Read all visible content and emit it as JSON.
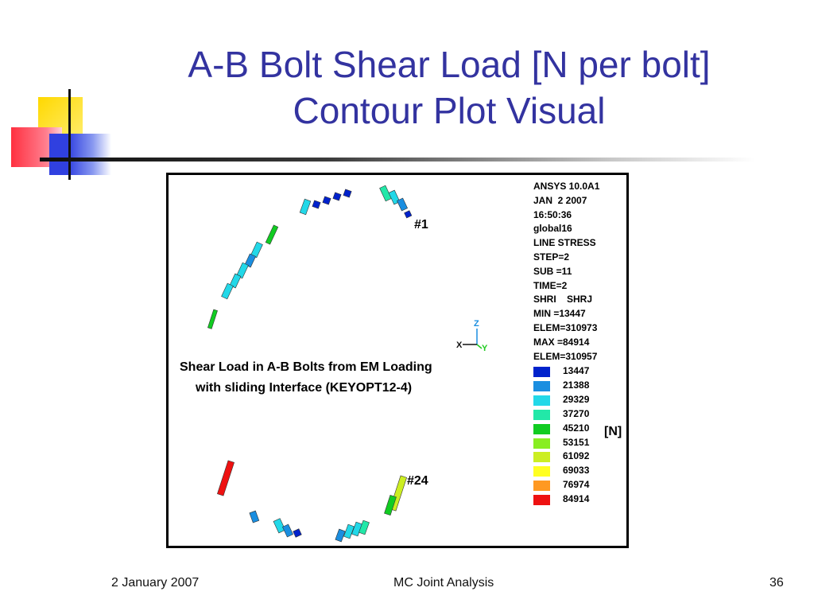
{
  "slide": {
    "title_line1": "A-B Bolt Shear Load [N per bolt]",
    "title_line2": "Contour Plot Visual"
  },
  "plot": {
    "header_lines": [
      "ANSYS 10.0A1",
      "JAN  2 2007",
      "16:50:36",
      "global16",
      "LINE STRESS",
      "STEP=2",
      "SUB =11",
      "TIME=2",
      "SHRI    SHRJ",
      "MIN =13447",
      "ELEM=310973",
      "MAX =84914",
      "ELEM=310957"
    ],
    "legend": [
      {
        "value": "13447",
        "color": "#0022cc"
      },
      {
        "value": "21388",
        "color": "#1a8ee0"
      },
      {
        "value": "29329",
        "color": "#22d8e8"
      },
      {
        "value": "37270",
        "color": "#22e8a8"
      },
      {
        "value": "45210",
        "color": "#11cc22"
      },
      {
        "value": "53151",
        "color": "#88ee22"
      },
      {
        "value": "61092",
        "color": "#ccee22"
      },
      {
        "value": "69033",
        "color": "#ffff22"
      },
      {
        "value": "76974",
        "color": "#ff9922"
      },
      {
        "value": "84914",
        "color": "#ee1111"
      }
    ],
    "unit": "[N]",
    "caption_line1": "Shear Load in A-B Bolts from EM Loading",
    "caption_line2": "with sliding Interface (KEYOPT12-4)",
    "bolt_label_1": "#1",
    "bolt_label_24": "#24",
    "axis_z": "Z",
    "axis_x": "X",
    "axis_y": "Y"
  },
  "footer": {
    "date": "2 January 2007",
    "center": "MC Joint Analysis",
    "page": "36"
  }
}
